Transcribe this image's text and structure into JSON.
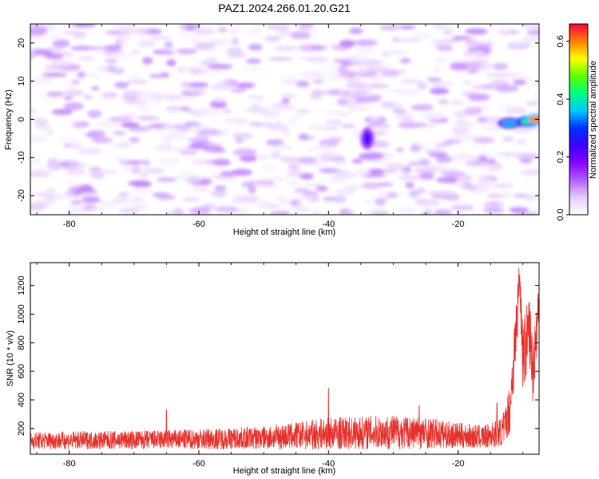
{
  "title": "PAZ1.2024.266.01.20.G21",
  "colors": {
    "snr_line": "#e8312b",
    "axes": "#000000",
    "spectrogram_scale": [
      "#ffffff",
      "#e6ccff",
      "#b060ff",
      "#8a00ff",
      "#3a00ff",
      "#0030ff",
      "#00c8ff",
      "#00ff80",
      "#60ff00",
      "#ffff00",
      "#ff8000",
      "#ff0040"
    ]
  },
  "chart_data": [
    {
      "type": "heatmap",
      "name": "spectrogram",
      "xlabel": "Height of straight line (km)",
      "ylabel": "Frequency (Hz)",
      "xlim": [
        -86,
        -7.5
      ],
      "ylim": [
        -25,
        25
      ],
      "x_ticks": [
        -80,
        -60,
        -40,
        -20
      ],
      "x_tick_labels": [
        "-80",
        "-60",
        "-40",
        "-20"
      ],
      "y_ticks": [
        -20,
        -10,
        0,
        10,
        20
      ],
      "y_tick_labels": [
        "-20",
        "-10",
        "0",
        "10",
        "20"
      ],
      "colorbar": {
        "label": "Normalized spectral amplitude",
        "range": [
          0.0,
          0.66
        ],
        "ticks": [
          0.0,
          0.2,
          0.4,
          0.6
        ],
        "tick_labels": [
          "0.0",
          "0.2",
          "0.4",
          "0.6"
        ]
      },
      "features": [
        {
          "x": -34,
          "y": -5,
          "amplitude": 0.22
        },
        {
          "x": -12,
          "y": -1,
          "amplitude": 0.35
        },
        {
          "x": -9,
          "y": -0.5,
          "amplitude": 0.45
        },
        {
          "x": -7.8,
          "y": 0,
          "amplitude": 0.6
        }
      ],
      "background_amplitude": [
        0.0,
        0.1
      ]
    },
    {
      "type": "line",
      "name": "snr",
      "xlabel": "Height of straight line (km)",
      "ylabel": "SNR (10 * v/v)",
      "xlim": [
        -86,
        -7.5
      ],
      "ylim": [
        20,
        1360
      ],
      "x_ticks": [
        -80,
        -60,
        -40,
        -20
      ],
      "x_tick_labels": [
        "-80",
        "-60",
        "-40",
        "-20"
      ],
      "y_ticks": [
        200,
        400,
        600,
        800,
        1000,
        1200
      ],
      "y_tick_labels": [
        "200",
        "400",
        "600",
        "800",
        "1000",
        "1200"
      ],
      "envelope": {
        "x": [
          -86,
          -70,
          -60,
          -50,
          -45,
          -40,
          -35,
          -30,
          -25,
          -20,
          -16,
          -13,
          -12,
          -11,
          -10.5,
          -10,
          -9,
          -8.5,
          -7.5
        ],
        "y": [
          115,
          120,
          125,
          135,
          150,
          165,
          170,
          175,
          170,
          150,
          140,
          180,
          350,
          900,
          1300,
          700,
          900,
          600,
          1100
        ]
      },
      "noise_amplitude": [
        60,
        65,
        70,
        80,
        95,
        110,
        115,
        120,
        110,
        90,
        80,
        100,
        180,
        250,
        120,
        250,
        250,
        250,
        150
      ],
      "spikes": [
        {
          "x": -65,
          "y": 330
        },
        {
          "x": -40,
          "y": 480
        },
        {
          "x": -26,
          "y": 360
        },
        {
          "x": -14,
          "y": 380
        },
        {
          "x": -13,
          "y": 310
        }
      ]
    }
  ]
}
